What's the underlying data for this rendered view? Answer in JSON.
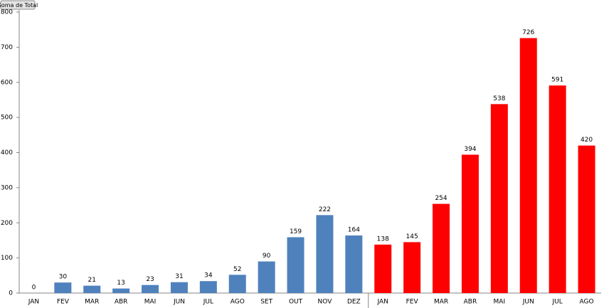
{
  "chart_data": {
    "type": "bar",
    "button": "Soma de Total",
    "categories": [
      "JAN",
      "FEV",
      "MAR",
      "ABR",
      "MAI",
      "JUN",
      "JUL",
      "AGO",
      "SET",
      "OUT",
      "NOV",
      "DEZ",
      "JAN",
      "FEV",
      "MAR",
      "ABR",
      "MAI",
      "JUN",
      "JUL",
      "AGO"
    ],
    "values": [
      0,
      30,
      21,
      13,
      23,
      31,
      34,
      52,
      90,
      159,
      222,
      164,
      138,
      145,
      254,
      394,
      538,
      726,
      591,
      420
    ],
    "colors": [
      "#4f81bd",
      "#4f81bd",
      "#4f81bd",
      "#4f81bd",
      "#4f81bd",
      "#4f81bd",
      "#4f81bd",
      "#4f81bd",
      "#4f81bd",
      "#4f81bd",
      "#4f81bd",
      "#4f81bd",
      "#ff0000",
      "#ff0000",
      "#ff0000",
      "#ff0000",
      "#ff0000",
      "#ff0000",
      "#ff0000",
      "#ff0000"
    ],
    "ylim": [
      0,
      800
    ],
    "yticks": [
      0,
      100,
      200,
      300,
      400,
      500,
      600,
      700,
      800
    ],
    "grid": false
  }
}
